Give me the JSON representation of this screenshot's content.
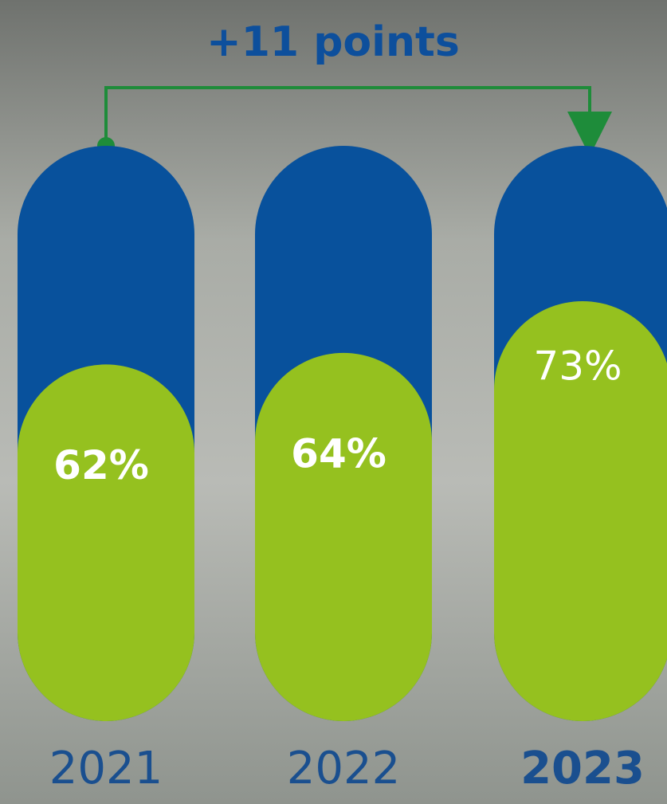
{
  "chart_data": {
    "type": "pill-bar",
    "annotation": "+11 points",
    "categories": [
      "2021",
      "2022",
      "2023"
    ],
    "values": [
      62,
      64,
      73
    ],
    "value_labels": [
      "62%",
      "64%",
      "73%"
    ],
    "color": "#95c11f",
    "track_color": "#08519c",
    "ylim": [
      0,
      100
    ]
  }
}
